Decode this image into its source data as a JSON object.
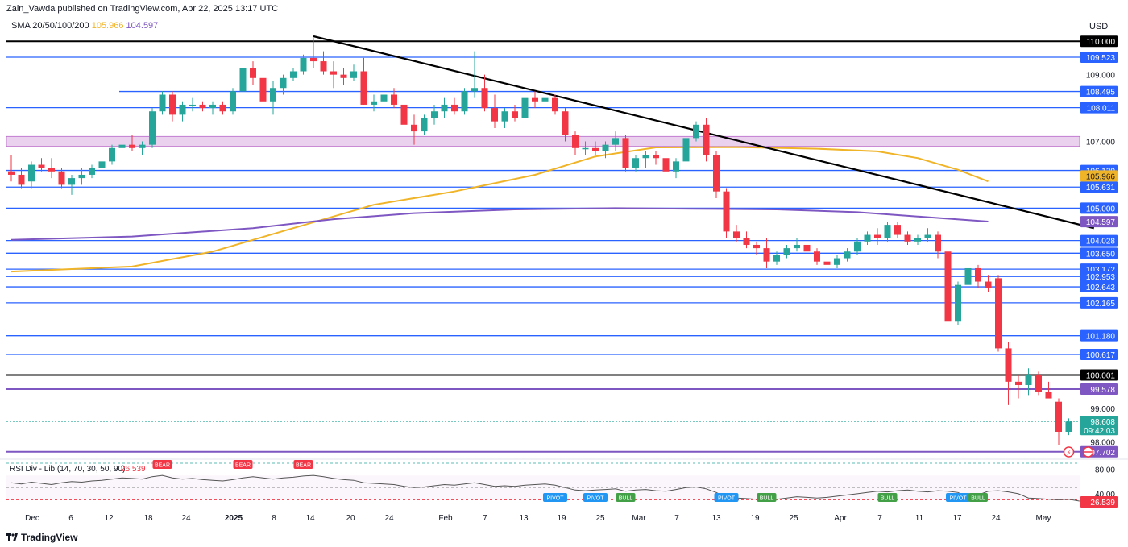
{
  "header": {
    "publisher_line": "Zain_Vawda published on TradingView.com, Apr 22, 2025 13:17 UTC",
    "sma_label": "SMA 20/50/100/200",
    "sma_value_1": "105.966",
    "sma_value_2": "104.597",
    "currency": "USD"
  },
  "footer": {
    "brand": "TradingView",
    "brand_icon": "tradingview-logo-icon"
  },
  "colors": {
    "bull": "#26a69a",
    "bear": "#f23645",
    "blue_line": "#2962ff",
    "black_line": "#000000",
    "purple_line": "#7e57c2",
    "orange_sma": "#f0b429",
    "purple_sma": "#7e57c2",
    "zone_fill": "#e1bee7",
    "rsi_line": "#555555",
    "rsi_low": "#f23645"
  },
  "chart_data": {
    "type": "candlestick",
    "instrument_currency": "USD",
    "price_axis": {
      "min": 97.6,
      "max": 110.15,
      "ticks": [
        "109.000",
        "107.000",
        "99.000",
        "98.000"
      ]
    },
    "time_axis": [
      "Dec",
      "6",
      "12",
      "18",
      "24",
      "2025",
      "8",
      "14",
      "20",
      "24",
      "Feb",
      "7",
      "13",
      "19",
      "25",
      "Mar",
      "7",
      "13",
      "19",
      "25",
      "Apr",
      "7",
      "11",
      "17",
      "24",
      "May"
    ],
    "horizontal_levels": [
      {
        "value": 110.0,
        "label": "110.000",
        "color": "black"
      },
      {
        "value": 109.523,
        "label": "109.523",
        "color": "blue"
      },
      {
        "value": 108.495,
        "label": "108.495",
        "color": "blue"
      },
      {
        "value": 108.011,
        "label": "108.011",
        "color": "blue"
      },
      {
        "value": 106.13,
        "label": "106.130",
        "color": "blue"
      },
      {
        "value": 105.631,
        "label": "105.631",
        "color": "blue"
      },
      {
        "value": 105.0,
        "label": "105.000",
        "color": "blue"
      },
      {
        "value": 104.028,
        "label": "104.028",
        "color": "blue"
      },
      {
        "value": 103.65,
        "label": "103.650",
        "color": "blue"
      },
      {
        "value": 103.172,
        "label": "103.172",
        "color": "blue"
      },
      {
        "value": 102.953,
        "label": "102.953",
        "color": "blue"
      },
      {
        "value": 102.643,
        "label": "102.643",
        "color": "blue"
      },
      {
        "value": 102.165,
        "label": "102.165",
        "color": "blue"
      },
      {
        "value": 101.18,
        "label": "101.180",
        "color": "blue"
      },
      {
        "value": 100.617,
        "label": "100.617",
        "color": "blue"
      },
      {
        "value": 100.001,
        "label": "100.001",
        "color": "black"
      },
      {
        "value": 99.578,
        "label": "99.578",
        "color": "purple"
      },
      {
        "value": 97.702,
        "label": "97.702",
        "color": "purple"
      }
    ],
    "sma_tags": [
      {
        "value": 105.966,
        "label": "105.966",
        "color": "orange"
      },
      {
        "value": 104.597,
        "label": "104.597",
        "color": "purple"
      }
    ],
    "last_price": {
      "value": 98.608,
      "label": "98.608",
      "countdown": "09:42:03"
    },
    "resistance_zone": {
      "top": 107.15,
      "bottom": 106.85
    },
    "downtrend_line": {
      "from": {
        "index": 30,
        "value": 110.15
      },
      "to": {
        "index": 107.5,
        "value": 104.4
      }
    },
    "sma_orange": [
      {
        "i": 0,
        "v": 103.1
      },
      {
        "i": 12,
        "v": 103.25
      },
      {
        "i": 20,
        "v": 103.7
      },
      {
        "i": 28,
        "v": 104.4
      },
      {
        "i": 36,
        "v": 105.1
      },
      {
        "i": 44,
        "v": 105.5
      },
      {
        "i": 52,
        "v": 106.0
      },
      {
        "i": 58,
        "v": 106.55
      },
      {
        "i": 64,
        "v": 106.82
      },
      {
        "i": 72,
        "v": 106.83
      },
      {
        "i": 80,
        "v": 106.78
      },
      {
        "i": 86,
        "v": 106.7
      },
      {
        "i": 90,
        "v": 106.5
      },
      {
        "i": 94,
        "v": 106.15
      },
      {
        "i": 97,
        "v": 105.8
      }
    ],
    "sma_purple": [
      {
        "i": 0,
        "v": 104.05
      },
      {
        "i": 12,
        "v": 104.15
      },
      {
        "i": 24,
        "v": 104.4
      },
      {
        "i": 32,
        "v": 104.67
      },
      {
        "i": 40,
        "v": 104.85
      },
      {
        "i": 50,
        "v": 104.96
      },
      {
        "i": 60,
        "v": 105.0
      },
      {
        "i": 68,
        "v": 104.98
      },
      {
        "i": 76,
        "v": 104.96
      },
      {
        "i": 84,
        "v": 104.88
      },
      {
        "i": 90,
        "v": 104.75
      },
      {
        "i": 97,
        "v": 104.6
      }
    ],
    "candles": [
      {
        "o": 106.1,
        "h": 106.6,
        "l": 105.8,
        "c": 106.0
      },
      {
        "o": 106.0,
        "h": 106.2,
        "l": 105.6,
        "c": 105.7
      },
      {
        "o": 105.8,
        "h": 106.4,
        "l": 105.6,
        "c": 106.3
      },
      {
        "o": 106.3,
        "h": 106.5,
        "l": 106.1,
        "c": 106.2
      },
      {
        "o": 106.2,
        "h": 106.5,
        "l": 105.9,
        "c": 106.1
      },
      {
        "o": 106.1,
        "h": 106.2,
        "l": 105.6,
        "c": 105.7
      },
      {
        "o": 105.7,
        "h": 106.0,
        "l": 105.4,
        "c": 105.9
      },
      {
        "o": 105.9,
        "h": 106.2,
        "l": 105.7,
        "c": 106.0
      },
      {
        "o": 106.0,
        "h": 106.3,
        "l": 105.9,
        "c": 106.2
      },
      {
        "o": 106.2,
        "h": 106.5,
        "l": 106.0,
        "c": 106.4
      },
      {
        "o": 106.4,
        "h": 106.9,
        "l": 106.3,
        "c": 106.8
      },
      {
        "o": 106.8,
        "h": 107.0,
        "l": 106.6,
        "c": 106.9
      },
      {
        "o": 106.9,
        "h": 107.2,
        "l": 106.7,
        "c": 106.8
      },
      {
        "o": 106.8,
        "h": 107.0,
        "l": 106.6,
        "c": 106.9
      },
      {
        "o": 106.9,
        "h": 108.0,
        "l": 106.8,
        "c": 107.9
      },
      {
        "o": 107.9,
        "h": 108.5,
        "l": 107.8,
        "c": 108.4
      },
      {
        "o": 108.4,
        "h": 108.5,
        "l": 107.6,
        "c": 107.8
      },
      {
        "o": 107.8,
        "h": 108.2,
        "l": 107.6,
        "c": 108.1
      },
      {
        "o": 108.1,
        "h": 108.3,
        "l": 107.9,
        "c": 108.1
      },
      {
        "o": 108.1,
        "h": 108.2,
        "l": 107.9,
        "c": 108.0
      },
      {
        "o": 108.0,
        "h": 108.2,
        "l": 107.8,
        "c": 108.1
      },
      {
        "o": 108.1,
        "h": 108.2,
        "l": 107.8,
        "c": 107.9
      },
      {
        "o": 107.9,
        "h": 108.6,
        "l": 107.8,
        "c": 108.5
      },
      {
        "o": 108.5,
        "h": 109.5,
        "l": 108.4,
        "c": 109.2
      },
      {
        "o": 109.2,
        "h": 109.4,
        "l": 108.7,
        "c": 108.9
      },
      {
        "o": 108.9,
        "h": 109.0,
        "l": 107.7,
        "c": 108.2
      },
      {
        "o": 108.2,
        "h": 108.8,
        "l": 107.8,
        "c": 108.6
      },
      {
        "o": 108.6,
        "h": 109.0,
        "l": 108.4,
        "c": 108.9
      },
      {
        "o": 108.9,
        "h": 109.2,
        "l": 108.8,
        "c": 109.1
      },
      {
        "o": 109.1,
        "h": 109.6,
        "l": 109.0,
        "c": 109.5
      },
      {
        "o": 109.5,
        "h": 110.1,
        "l": 109.2,
        "c": 109.4
      },
      {
        "o": 109.4,
        "h": 109.7,
        "l": 109.0,
        "c": 109.1
      },
      {
        "o": 109.1,
        "h": 109.4,
        "l": 108.6,
        "c": 109.0
      },
      {
        "o": 109.0,
        "h": 109.2,
        "l": 108.7,
        "c": 108.9
      },
      {
        "o": 108.9,
        "h": 109.3,
        "l": 108.8,
        "c": 109.1
      },
      {
        "o": 109.1,
        "h": 109.5,
        "l": 108.1,
        "c": 108.1
      },
      {
        "o": 108.1,
        "h": 108.4,
        "l": 107.9,
        "c": 108.2
      },
      {
        "o": 108.2,
        "h": 108.5,
        "l": 107.9,
        "c": 108.4
      },
      {
        "o": 108.4,
        "h": 108.6,
        "l": 108.0,
        "c": 108.1
      },
      {
        "o": 108.1,
        "h": 108.2,
        "l": 107.4,
        "c": 107.5
      },
      {
        "o": 107.5,
        "h": 107.8,
        "l": 106.9,
        "c": 107.3
      },
      {
        "o": 107.3,
        "h": 107.8,
        "l": 107.2,
        "c": 107.7
      },
      {
        "o": 107.7,
        "h": 108.1,
        "l": 107.5,
        "c": 107.9
      },
      {
        "o": 107.9,
        "h": 108.3,
        "l": 107.7,
        "c": 108.1
      },
      {
        "o": 108.1,
        "h": 108.3,
        "l": 107.8,
        "c": 107.9
      },
      {
        "o": 107.9,
        "h": 108.6,
        "l": 107.8,
        "c": 108.5
      },
      {
        "o": 108.5,
        "h": 109.7,
        "l": 108.3,
        "c": 108.6
      },
      {
        "o": 108.6,
        "h": 109.0,
        "l": 107.9,
        "c": 108.0
      },
      {
        "o": 108.0,
        "h": 108.4,
        "l": 107.4,
        "c": 107.6
      },
      {
        "o": 107.6,
        "h": 108.0,
        "l": 107.4,
        "c": 107.9
      },
      {
        "o": 107.9,
        "h": 108.1,
        "l": 107.6,
        "c": 107.7
      },
      {
        "o": 107.7,
        "h": 108.4,
        "l": 107.6,
        "c": 108.3
      },
      {
        "o": 108.3,
        "h": 108.5,
        "l": 108.0,
        "c": 108.2
      },
      {
        "o": 108.2,
        "h": 108.5,
        "l": 108.0,
        "c": 108.3
      },
      {
        "o": 108.3,
        "h": 108.4,
        "l": 107.8,
        "c": 107.9
      },
      {
        "o": 107.9,
        "h": 108.0,
        "l": 107.0,
        "c": 107.2
      },
      {
        "o": 107.2,
        "h": 107.3,
        "l": 106.6,
        "c": 106.8
      },
      {
        "o": 106.8,
        "h": 107.0,
        "l": 106.6,
        "c": 106.8
      },
      {
        "o": 106.8,
        "h": 107.0,
        "l": 106.6,
        "c": 106.7
      },
      {
        "o": 106.7,
        "h": 107.0,
        "l": 106.5,
        "c": 106.9
      },
      {
        "o": 106.9,
        "h": 107.3,
        "l": 106.7,
        "c": 107.1
      },
      {
        "o": 107.1,
        "h": 107.2,
        "l": 106.1,
        "c": 106.2
      },
      {
        "o": 106.2,
        "h": 106.6,
        "l": 106.1,
        "c": 106.5
      },
      {
        "o": 106.5,
        "h": 106.7,
        "l": 106.2,
        "c": 106.6
      },
      {
        "o": 106.6,
        "h": 106.7,
        "l": 106.3,
        "c": 106.5
      },
      {
        "o": 106.5,
        "h": 106.7,
        "l": 106.0,
        "c": 106.1
      },
      {
        "o": 106.1,
        "h": 106.5,
        "l": 105.9,
        "c": 106.4
      },
      {
        "o": 106.4,
        "h": 107.3,
        "l": 106.3,
        "c": 107.1
      },
      {
        "o": 107.1,
        "h": 107.6,
        "l": 107.0,
        "c": 107.5
      },
      {
        "o": 107.5,
        "h": 107.7,
        "l": 106.4,
        "c": 106.6
      },
      {
        "o": 106.6,
        "h": 106.7,
        "l": 105.3,
        "c": 105.5
      },
      {
        "o": 105.5,
        "h": 105.6,
        "l": 104.1,
        "c": 104.3
      },
      {
        "o": 104.3,
        "h": 104.5,
        "l": 104.0,
        "c": 104.1
      },
      {
        "o": 104.1,
        "h": 104.3,
        "l": 103.8,
        "c": 103.9
      },
      {
        "o": 103.9,
        "h": 104.0,
        "l": 103.6,
        "c": 103.8
      },
      {
        "o": 103.8,
        "h": 104.1,
        "l": 103.2,
        "c": 103.4
      },
      {
        "o": 103.4,
        "h": 103.7,
        "l": 103.3,
        "c": 103.6
      },
      {
        "o": 103.6,
        "h": 103.9,
        "l": 103.5,
        "c": 103.8
      },
      {
        "o": 103.8,
        "h": 104.1,
        "l": 103.7,
        "c": 103.9
      },
      {
        "o": 103.9,
        "h": 104.0,
        "l": 103.6,
        "c": 103.7
      },
      {
        "o": 103.7,
        "h": 103.8,
        "l": 103.3,
        "c": 103.4
      },
      {
        "o": 103.4,
        "h": 103.6,
        "l": 103.2,
        "c": 103.3
      },
      {
        "o": 103.3,
        "h": 103.6,
        "l": 103.2,
        "c": 103.5
      },
      {
        "o": 103.5,
        "h": 103.8,
        "l": 103.4,
        "c": 103.7
      },
      {
        "o": 103.7,
        "h": 104.1,
        "l": 103.6,
        "c": 104.0
      },
      {
        "o": 104.0,
        "h": 104.3,
        "l": 103.9,
        "c": 104.2
      },
      {
        "o": 104.2,
        "h": 104.4,
        "l": 103.9,
        "c": 104.1
      },
      {
        "o": 104.1,
        "h": 104.6,
        "l": 104.0,
        "c": 104.5
      },
      {
        "o": 104.5,
        "h": 104.6,
        "l": 104.1,
        "c": 104.2
      },
      {
        "o": 104.2,
        "h": 104.3,
        "l": 103.9,
        "c": 104.0
      },
      {
        "o": 104.0,
        "h": 104.2,
        "l": 103.9,
        "c": 104.1
      },
      {
        "o": 104.1,
        "h": 104.4,
        "l": 104.0,
        "c": 104.2
      },
      {
        "o": 104.2,
        "h": 104.3,
        "l": 103.5,
        "c": 103.7
      },
      {
        "o": 103.7,
        "h": 103.8,
        "l": 101.3,
        "c": 101.6
      },
      {
        "o": 101.6,
        "h": 102.8,
        "l": 101.5,
        "c": 102.7
      },
      {
        "o": 102.7,
        "h": 103.3,
        "l": 101.6,
        "c": 103.2
      },
      {
        "o": 103.2,
        "h": 103.3,
        "l": 102.6,
        "c": 102.8
      },
      {
        "o": 102.8,
        "h": 103.0,
        "l": 102.5,
        "c": 102.6
      },
      {
        "o": 102.9,
        "h": 103.0,
        "l": 100.7,
        "c": 100.8
      },
      {
        "o": 100.8,
        "h": 101.0,
        "l": 99.1,
        "c": 99.8
      },
      {
        "o": 99.8,
        "h": 100.0,
        "l": 99.3,
        "c": 99.7
      },
      {
        "o": 99.7,
        "h": 100.2,
        "l": 99.4,
        "c": 100.0
      },
      {
        "o": 100.0,
        "h": 100.1,
        "l": 99.4,
        "c": 99.5
      },
      {
        "o": 99.5,
        "h": 99.8,
        "l": 99.3,
        "c": 99.3
      },
      {
        "o": 99.2,
        "h": 99.3,
        "l": 97.9,
        "c": 98.3
      },
      {
        "o": 98.3,
        "h": 98.7,
        "l": 98.2,
        "c": 98.608
      }
    ],
    "rsi": {
      "label": "RSI Div - Lib (14, 70, 30, 50, 90)",
      "value_label": "26.539",
      "levels_labels": [
        "80.00",
        "40.00"
      ],
      "tag_current": "26.539",
      "values": [
        58,
        56,
        59,
        57,
        55,
        58,
        60,
        59,
        61,
        62,
        64,
        66,
        65,
        64,
        68,
        70,
        66,
        64,
        65,
        63,
        62,
        61,
        63,
        66,
        68,
        66,
        64,
        66,
        67,
        69,
        70,
        68,
        65,
        63,
        62,
        58,
        57,
        56,
        55,
        52,
        50,
        51,
        53,
        55,
        54,
        56,
        58,
        55,
        52,
        53,
        52,
        54,
        55,
        56,
        54,
        50,
        46,
        45,
        46,
        47,
        48,
        44,
        46,
        47,
        45,
        44,
        47,
        50,
        51,
        48,
        42,
        34,
        33,
        32,
        31,
        30,
        31,
        33,
        35,
        34,
        33,
        34,
        36,
        38,
        40,
        42,
        44,
        43,
        45,
        46,
        44,
        43,
        45,
        44,
        42,
        34,
        38,
        44,
        45,
        43,
        40,
        33,
        32,
        31,
        30,
        31,
        28,
        27,
        26.539
      ],
      "labels": [
        {
          "text": "BEAR",
          "index": 15,
          "kind": "bear"
        },
        {
          "text": "BEAR",
          "index": 23,
          "kind": "bear"
        },
        {
          "text": "BEAR",
          "index": 29,
          "kind": "bear"
        },
        {
          "text": "PIVOT",
          "index": 54,
          "kind": "pivot"
        },
        {
          "text": "PIVOT",
          "index": 58,
          "kind": "pivot"
        },
        {
          "text": "BULL",
          "index": 61,
          "kind": "bull"
        },
        {
          "text": "PIVOT",
          "index": 71,
          "kind": "pivot"
        },
        {
          "text": "BULL",
          "index": 75,
          "kind": "bull"
        },
        {
          "text": "BULL",
          "index": 87,
          "kind": "bull"
        },
        {
          "text": "PIVOT",
          "index": 94,
          "kind": "pivot"
        },
        {
          "text": "BULL",
          "index": 96,
          "kind": "bull"
        }
      ]
    }
  }
}
